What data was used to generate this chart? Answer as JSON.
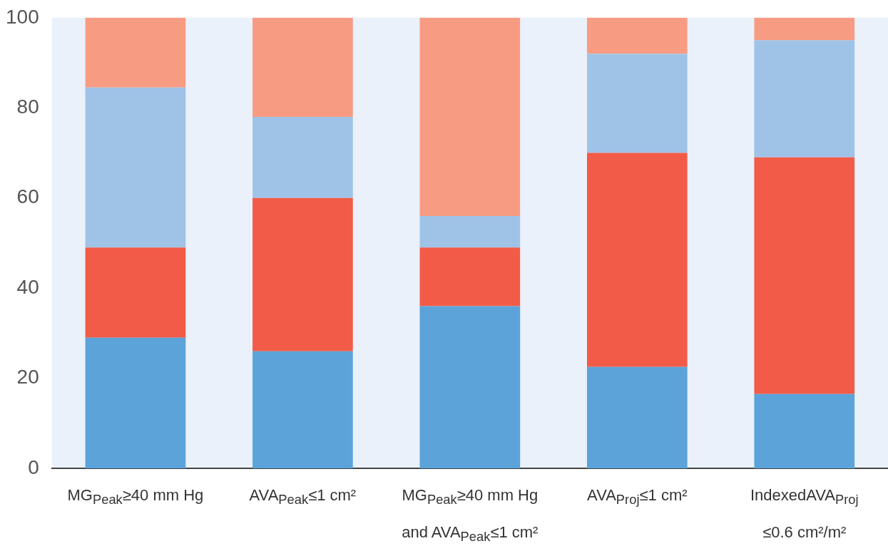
{
  "chart_data": {
    "type": "bar",
    "stacked": true,
    "categories": [
      "MG$_{Peak}$≥40 mm Hg",
      "AVA$_{Peak}$≤1 cm²",
      "MG$_{Peak}$≥40 mm Hg\nand AVA$_{Peak}$≤1 cm²",
      "AVA$_{Proj}$≤1 cm²",
      "IndexedAVA$_{Proj}$\n≤0.6 cm²/m²"
    ],
    "series": [
      {
        "color": "#5ba3d9",
        "values": [
          29,
          26,
          36,
          22.5,
          16.5
        ]
      },
      {
        "color": "#f25b47",
        "values": [
          20,
          34,
          13,
          47.5,
          52.5
        ]
      },
      {
        "color": "#9fc3e7",
        "values": [
          35.5,
          18,
          7,
          22,
          26
        ]
      },
      {
        "color": "#f79c82",
        "values": [
          15.5,
          22,
          44,
          8,
          5
        ]
      }
    ],
    "ylim": [
      0,
      100
    ],
    "yticks": [
      0,
      20,
      40,
      60,
      80,
      100
    ],
    "grid": false,
    "legend": false
  }
}
